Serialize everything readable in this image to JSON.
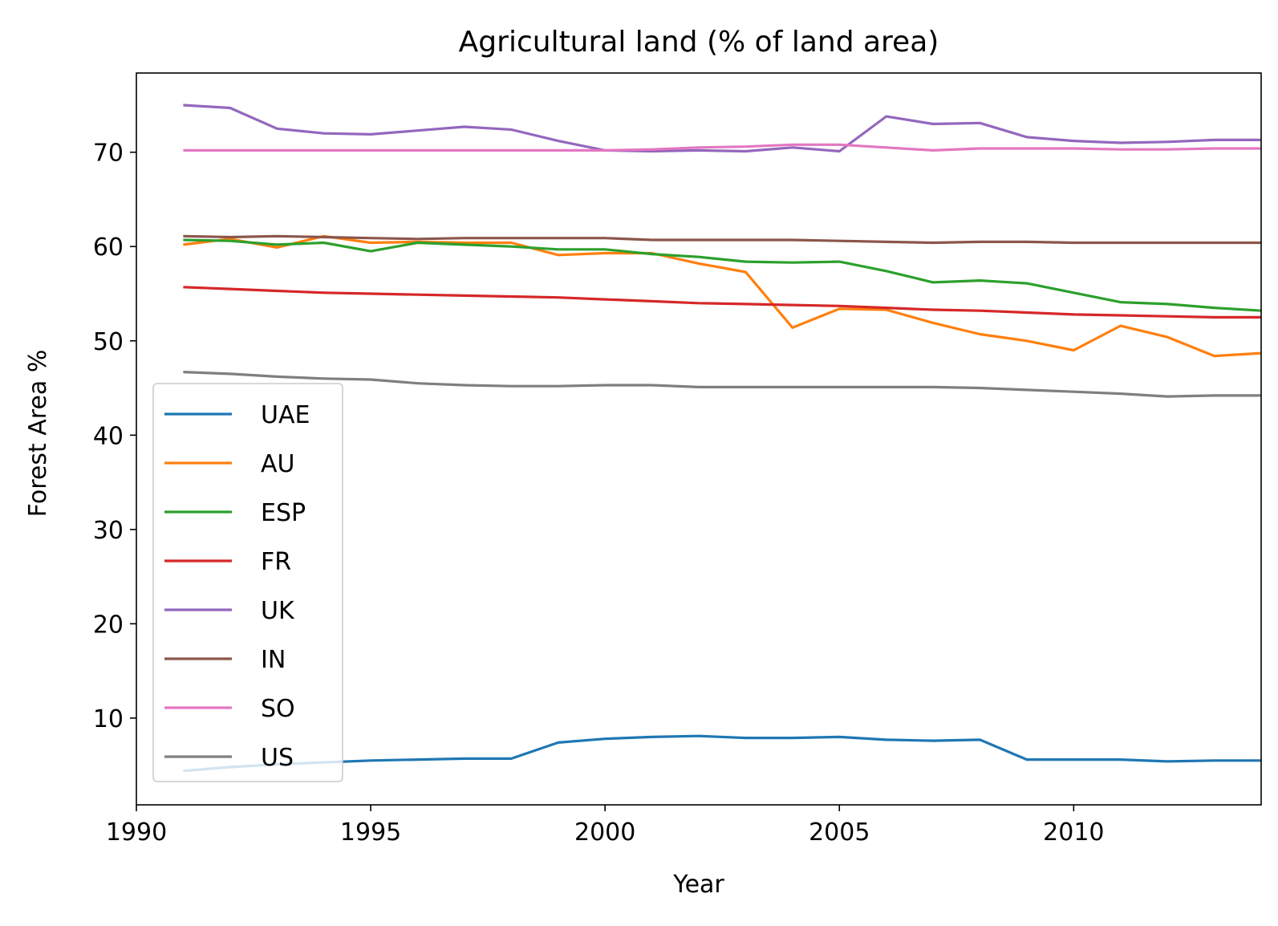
{
  "chart_data": {
    "type": "line",
    "title": "Agricultural land (% of land area)",
    "xlabel": "Year",
    "ylabel": "Forest Area %",
    "xlim": [
      1990,
      2014
    ],
    "ylim": [
      0.8,
      78.4
    ],
    "xticks": [
      1990,
      1995,
      2000,
      2005,
      2010
    ],
    "yticks": [
      10,
      20,
      30,
      40,
      50,
      60,
      70
    ],
    "grid": false,
    "legend_position": "lower-left",
    "x": [
      1991,
      1992,
      1993,
      1994,
      1995,
      1996,
      1997,
      1998,
      1999,
      2000,
      2001,
      2002,
      2003,
      2004,
      2005,
      2006,
      2007,
      2008,
      2009,
      2010,
      2011,
      2012,
      2013,
      2014
    ],
    "series": [
      {
        "name": "UAE",
        "color": "#1f77b4",
        "values": [
          4.4,
          4.8,
          5.1,
          5.3,
          5.5,
          5.6,
          5.7,
          5.7,
          7.4,
          7.8,
          8.0,
          8.1,
          7.9,
          7.9,
          8.0,
          7.7,
          7.6,
          7.7,
          5.6,
          5.6,
          5.6,
          5.4,
          5.5,
          5.5
        ]
      },
      {
        "name": "AU",
        "color": "#ff7f0e",
        "values": [
          60.2,
          60.8,
          59.9,
          61.1,
          60.4,
          60.5,
          60.4,
          60.4,
          59.1,
          59.3,
          59.3,
          58.2,
          57.3,
          51.4,
          53.4,
          53.3,
          51.9,
          50.7,
          50.0,
          49.0,
          51.6,
          50.4,
          48.4,
          48.7
        ]
      },
      {
        "name": "ESP",
        "color": "#2ca02c",
        "values": [
          60.7,
          60.6,
          60.2,
          60.4,
          59.5,
          60.4,
          60.2,
          60.0,
          59.7,
          59.7,
          59.2,
          58.9,
          58.4,
          58.3,
          58.4,
          57.4,
          56.2,
          56.4,
          56.1,
          55.1,
          54.1,
          53.9,
          53.5,
          53.2
        ]
      },
      {
        "name": "FR",
        "color": "#d62728",
        "values": [
          55.7,
          55.5,
          55.3,
          55.1,
          55.0,
          54.9,
          54.8,
          54.7,
          54.6,
          54.4,
          54.2,
          54.0,
          53.9,
          53.8,
          53.7,
          53.5,
          53.3,
          53.2,
          53.0,
          52.8,
          52.7,
          52.6,
          52.5,
          52.5
        ]
      },
      {
        "name": "UK",
        "color": "#9467bd",
        "values": [
          75.0,
          74.7,
          72.5,
          72.0,
          71.9,
          72.3,
          72.7,
          72.4,
          71.2,
          70.2,
          70.1,
          70.2,
          70.1,
          70.5,
          70.1,
          73.8,
          73.0,
          73.1,
          71.6,
          71.2,
          71.0,
          71.1,
          71.3,
          71.3
        ]
      },
      {
        "name": "IN",
        "color": "#8c564b",
        "values": [
          61.1,
          61.0,
          61.1,
          61.0,
          60.9,
          60.8,
          60.9,
          60.9,
          60.9,
          60.9,
          60.7,
          60.7,
          60.7,
          60.7,
          60.6,
          60.5,
          60.4,
          60.5,
          60.5,
          60.4,
          60.4,
          60.4,
          60.4,
          60.4
        ]
      },
      {
        "name": "SO",
        "color": "#e377c2",
        "values": [
          70.2,
          70.2,
          70.2,
          70.2,
          70.2,
          70.2,
          70.2,
          70.2,
          70.2,
          70.2,
          70.3,
          70.5,
          70.6,
          70.8,
          70.8,
          70.5,
          70.2,
          70.4,
          70.4,
          70.4,
          70.3,
          70.3,
          70.4,
          70.4
        ]
      },
      {
        "name": "US",
        "color": "#7f7f7f",
        "values": [
          46.7,
          46.5,
          46.2,
          46.0,
          45.9,
          45.5,
          45.3,
          45.2,
          45.2,
          45.3,
          45.3,
          45.1,
          45.1,
          45.1,
          45.1,
          45.1,
          45.1,
          45.0,
          44.8,
          44.6,
          44.4,
          44.1,
          44.2,
          44.2
        ]
      }
    ]
  }
}
